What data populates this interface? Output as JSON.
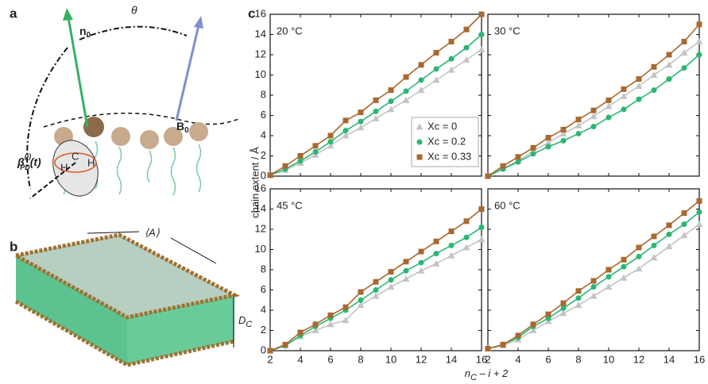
{
  "figure": {
    "panel_labels": [
      "a",
      "b",
      "c"
    ],
    "diagram_a": {
      "n0": {
        "base": "n",
        "sub": "0"
      },
      "theta": "θ",
      "b0": {
        "base": "B",
        "sub": "0"
      },
      "beta": {
        "base": "β",
        "sup": "(i)",
        "sub": "PD",
        "tail": "(t)"
      },
      "atoms": [
        "H",
        "C",
        "H"
      ]
    },
    "diagram_b": {
      "area": "⟨A⟩",
      "thickness": {
        "base": "D",
        "sub": "C"
      }
    },
    "y_label": "chain extent / Å",
    "x_label": {
      "base": "n",
      "sub": "C",
      "tail": " – i + 2"
    }
  },
  "chart_data": [
    {
      "type": "line",
      "title": "20 °C",
      "x": [
        2,
        3,
        4,
        5,
        6,
        7,
        8,
        9,
        10,
        11,
        12,
        13,
        14,
        15,
        16
      ],
      "xlim": [
        2,
        16
      ],
      "xticks": [
        2,
        4,
        6,
        8,
        10,
        12,
        14,
        16
      ],
      "ylim": [
        0,
        16
      ],
      "yticks": [
        0,
        2,
        4,
        6,
        8,
        10,
        12,
        14,
        16
      ],
      "legend": "lower right",
      "series": [
        {
          "name": "Xc = 0",
          "color": "#c4c4c4",
          "marker": "triangle",
          "values": [
            0.1,
            0.6,
            1.3,
            2.1,
            3.0,
            4.0,
            4.8,
            5.7,
            6.6,
            7.5,
            8.5,
            9.5,
            10.5,
            11.5,
            12.5
          ]
        },
        {
          "name": "Xc = 0.2",
          "color": "#2bb673",
          "marker": "circle",
          "values": [
            0.1,
            0.7,
            1.5,
            2.4,
            3.4,
            4.5,
            5.4,
            6.4,
            7.4,
            8.4,
            9.5,
            10.6,
            11.6,
            12.7,
            14.0
          ]
        },
        {
          "name": "Xc = 0.33",
          "color": "#a8682f",
          "marker": "square",
          "values": [
            0.1,
            1.0,
            2.0,
            3.0,
            4.0,
            5.5,
            6.3,
            7.5,
            8.5,
            9.8,
            11.0,
            12.2,
            13.3,
            14.5,
            16.0
          ]
        }
      ]
    },
    {
      "type": "line",
      "title": "30 °C",
      "x": [
        2,
        3,
        4,
        5,
        6,
        7,
        8,
        9,
        10,
        11,
        12,
        13,
        14,
        15,
        16
      ],
      "xlim": [
        2,
        16
      ],
      "xticks": [
        2,
        4,
        6,
        8,
        10,
        12,
        14,
        16
      ],
      "ylim": [
        0,
        16
      ],
      "yticks": [
        0,
        2,
        4,
        6,
        8,
        10,
        12,
        14,
        16
      ],
      "series": [
        {
          "name": "Xc = 0",
          "color": "#c4c4c4",
          "marker": "triangle",
          "values": [
            0,
            0.8,
            1.5,
            2.5,
            3.3,
            4.2,
            5.0,
            5.9,
            6.9,
            7.9,
            8.9,
            10.0,
            11.0,
            12.2,
            13.3
          ]
        },
        {
          "name": "Xc = 0.2",
          "color": "#2bb673",
          "marker": "circle",
          "values": [
            0,
            0.7,
            1.4,
            2.2,
            2.9,
            3.5,
            4.2,
            4.9,
            5.8,
            6.6,
            7.6,
            8.5,
            9.6,
            10.7,
            12.0
          ]
        },
        {
          "name": "Xc = 0.33",
          "color": "#a8682f",
          "marker": "square",
          "values": [
            0,
            1.0,
            1.9,
            2.8,
            3.8,
            4.6,
            5.6,
            6.5,
            7.5,
            8.6,
            9.6,
            10.8,
            12.0,
            13.3,
            15.0
          ]
        }
      ]
    },
    {
      "type": "line",
      "title": "45 °C",
      "x": [
        2,
        3,
        4,
        5,
        6,
        7,
        8,
        9,
        10,
        11,
        12,
        13,
        14,
        15,
        16
      ],
      "xlim": [
        2,
        16
      ],
      "xticks": [
        2,
        4,
        6,
        8,
        10,
        12,
        14,
        16
      ],
      "ylim": [
        0,
        16
      ],
      "yticks": [
        0,
        2,
        4,
        6,
        8,
        10,
        12,
        14,
        16
      ],
      "series": [
        {
          "name": "Xc = 0",
          "color": "#c4c4c4",
          "marker": "triangle",
          "values": [
            0,
            0.5,
            1.4,
            2.0,
            2.6,
            3.0,
            4.5,
            5.4,
            6.3,
            7.1,
            7.9,
            8.6,
            9.4,
            10.2,
            11.0
          ]
        },
        {
          "name": "Xc = 0.2",
          "color": "#2bb673",
          "marker": "circle",
          "values": [
            0,
            0.5,
            1.5,
            2.4,
            3.2,
            4.0,
            5.0,
            6.0,
            7.0,
            7.9,
            8.7,
            9.6,
            10.4,
            11.2,
            12.2
          ]
        },
        {
          "name": "Xc = 0.33",
          "color": "#a8682f",
          "marker": "square",
          "values": [
            0,
            0.6,
            1.8,
            2.6,
            3.5,
            4.3,
            5.8,
            6.8,
            7.8,
            8.8,
            9.8,
            10.8,
            11.8,
            12.8,
            14.0
          ]
        }
      ]
    },
    {
      "type": "line",
      "title": "60 °C",
      "x": [
        2,
        3,
        4,
        5,
        6,
        7,
        8,
        9,
        10,
        11,
        12,
        13,
        14,
        15,
        16
      ],
      "xlim": [
        2,
        16
      ],
      "xticks": [
        2,
        4,
        6,
        8,
        10,
        12,
        14,
        16
      ],
      "ylim": [
        0,
        16
      ],
      "yticks": [
        0,
        2,
        4,
        6,
        8,
        10,
        12,
        14,
        16
      ],
      "series": [
        {
          "name": "Xc = 0",
          "color": "#c4c4c4",
          "marker": "triangle",
          "values": [
            0.2,
            0.5,
            1.1,
            2.0,
            2.9,
            3.7,
            4.5,
            5.4,
            6.3,
            7.2,
            8.1,
            9.2,
            10.3,
            11.4,
            12.5
          ]
        },
        {
          "name": "Xc = 0.2",
          "color": "#2bb673",
          "marker": "circle",
          "values": [
            0.2,
            0.6,
            1.3,
            2.4,
            3.2,
            4.2,
            5.2,
            6.3,
            7.3,
            8.3,
            9.3,
            10.4,
            11.5,
            12.5,
            13.7
          ]
        },
        {
          "name": "Xc = 0.33",
          "color": "#a8682f",
          "marker": "square",
          "values": [
            0.2,
            0.6,
            1.5,
            2.6,
            3.6,
            4.7,
            5.9,
            6.9,
            8.0,
            9.0,
            10.2,
            11.3,
            12.4,
            13.6,
            14.8
          ]
        }
      ]
    }
  ]
}
